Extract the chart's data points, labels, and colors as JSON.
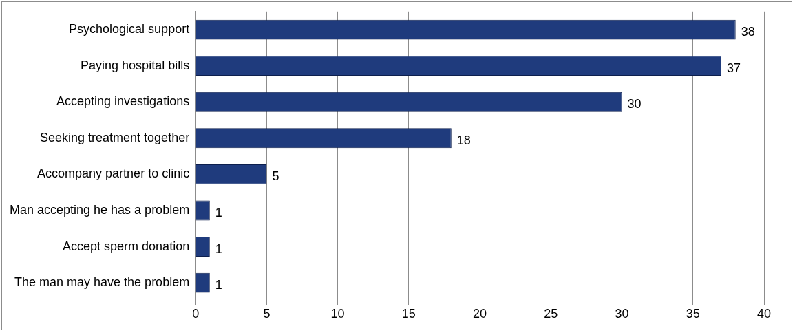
{
  "chart_data": {
    "type": "bar",
    "orientation": "horizontal",
    "categories": [
      "Psychological support",
      "Paying hospital bills",
      "Accepting investigations",
      "Seeking treatment together",
      "Accompany partner to clinic",
      "Man accepting he has a problem",
      "Accept sperm donation",
      "The man may have the problem"
    ],
    "values": [
      38,
      37,
      30,
      18,
      5,
      1,
      1,
      1
    ],
    "color": "#1f3b7d",
    "xlim": [
      0,
      40
    ],
    "xticks": [
      0,
      5,
      10,
      15,
      20,
      25,
      30,
      35,
      40
    ],
    "grid": "x",
    "data_labels": true,
    "legend": false
  }
}
